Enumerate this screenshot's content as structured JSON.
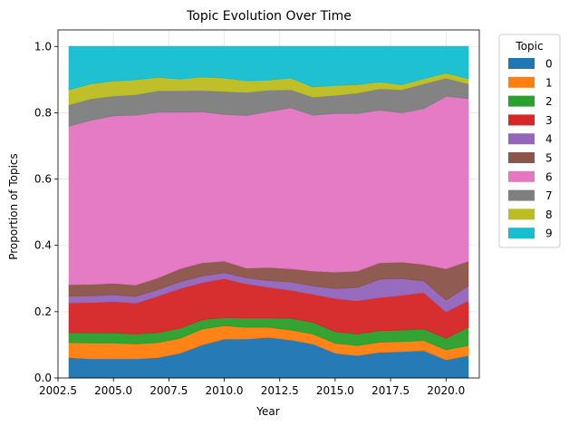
{
  "chart_data": {
    "type": "area",
    "stacked": true,
    "title": "Topic Evolution Over Time",
    "xlabel": "Year",
    "ylabel": "Proportion of Topics",
    "xlim": [
      2002.5,
      2021.5
    ],
    "ylim": [
      0,
      1.05
    ],
    "xticks": [
      2002.5,
      2005.0,
      2007.5,
      2010.0,
      2012.5,
      2015.0,
      2017.5,
      2020.0
    ],
    "xtick_labels": [
      "2002.5",
      "2005.0",
      "2007.5",
      "2010.0",
      "2012.5",
      "2015.0",
      "2017.5",
      "2020.0"
    ],
    "yticks": [
      0,
      0.2,
      0.4,
      0.6,
      0.8,
      1.0
    ],
    "ytick_labels": [
      "0.0",
      "0.2",
      "0.4",
      "0.6",
      "0.8",
      "1.0"
    ],
    "grid": true,
    "legend": {
      "title": "Topic",
      "placement": "outside-right"
    },
    "x": [
      2003,
      2004,
      2005,
      2006,
      2007,
      2008,
      2009,
      2010,
      2011,
      2012,
      2013,
      2014,
      2015,
      2016,
      2017,
      2018,
      2019,
      2020,
      2021
    ],
    "series": [
      {
        "name": "0",
        "color": "#1f77b4",
        "values": [
          0.062,
          0.058,
          0.058,
          0.058,
          0.062,
          0.075,
          0.1,
          0.118,
          0.118,
          0.123,
          0.115,
          0.103,
          0.075,
          0.068,
          0.078,
          0.08,
          0.083,
          0.055,
          0.068
        ]
      },
      {
        "name": "1",
        "color": "#ff7f0e",
        "values": [
          0.045,
          0.048,
          0.048,
          0.045,
          0.045,
          0.045,
          0.048,
          0.04,
          0.035,
          0.03,
          0.03,
          0.03,
          0.03,
          0.03,
          0.03,
          0.03,
          0.03,
          0.03,
          0.03
        ]
      },
      {
        "name": "2",
        "color": "#2ca02c",
        "values": [
          0.03,
          0.03,
          0.03,
          0.03,
          0.03,
          0.03,
          0.028,
          0.025,
          0.028,
          0.028,
          0.035,
          0.035,
          0.035,
          0.035,
          0.035,
          0.035,
          0.035,
          0.035,
          0.055
        ]
      },
      {
        "name": "3",
        "color": "#d62728",
        "values": [
          0.09,
          0.092,
          0.095,
          0.093,
          0.11,
          0.12,
          0.112,
          0.117,
          0.103,
          0.093,
          0.085,
          0.085,
          0.1,
          0.1,
          0.1,
          0.105,
          0.11,
          0.08,
          0.08
        ]
      },
      {
        "name": "4",
        "color": "#9467bd",
        "values": [
          0.02,
          0.02,
          0.02,
          0.02,
          0.02,
          0.02,
          0.02,
          0.018,
          0.018,
          0.02,
          0.025,
          0.025,
          0.03,
          0.04,
          0.055,
          0.05,
          0.035,
          0.035,
          0.045
        ]
      },
      {
        "name": "5",
        "color": "#8c564b",
        "values": [
          0.035,
          0.035,
          0.035,
          0.035,
          0.035,
          0.04,
          0.04,
          0.035,
          0.03,
          0.04,
          0.04,
          0.045,
          0.05,
          0.05,
          0.05,
          0.05,
          0.05,
          0.095,
          0.075
        ]
      },
      {
        "name": "6",
        "color": "#e377c2",
        "values": [
          0.478,
          0.495,
          0.505,
          0.512,
          0.5,
          0.472,
          0.455,
          0.442,
          0.46,
          0.47,
          0.485,
          0.47,
          0.478,
          0.475,
          0.46,
          0.45,
          0.47,
          0.52,
          0.49
        ]
      },
      {
        "name": "7",
        "color": "#7f7f7f",
        "values": [
          0.065,
          0.065,
          0.06,
          0.062,
          0.065,
          0.065,
          0.065,
          0.07,
          0.07,
          0.065,
          0.055,
          0.055,
          0.055,
          0.062,
          0.065,
          0.07,
          0.075,
          0.055,
          0.045
        ]
      },
      {
        "name": "8",
        "color": "#bcbd22",
        "values": [
          0.045,
          0.045,
          0.045,
          0.045,
          0.04,
          0.035,
          0.04,
          0.04,
          0.035,
          0.03,
          0.035,
          0.03,
          0.03,
          0.025,
          0.02,
          0.015,
          0.015,
          0.015,
          0.015
        ]
      },
      {
        "name": "9",
        "color": "#17becf",
        "values": [
          0.13,
          0.112,
          0.104,
          0.1,
          0.093,
          0.098,
          0.092,
          0.095,
          0.103,
          0.101,
          0.095,
          0.122,
          0.117,
          0.115,
          0.107,
          0.115,
          0.097,
          0.08,
          0.097
        ]
      }
    ]
  }
}
